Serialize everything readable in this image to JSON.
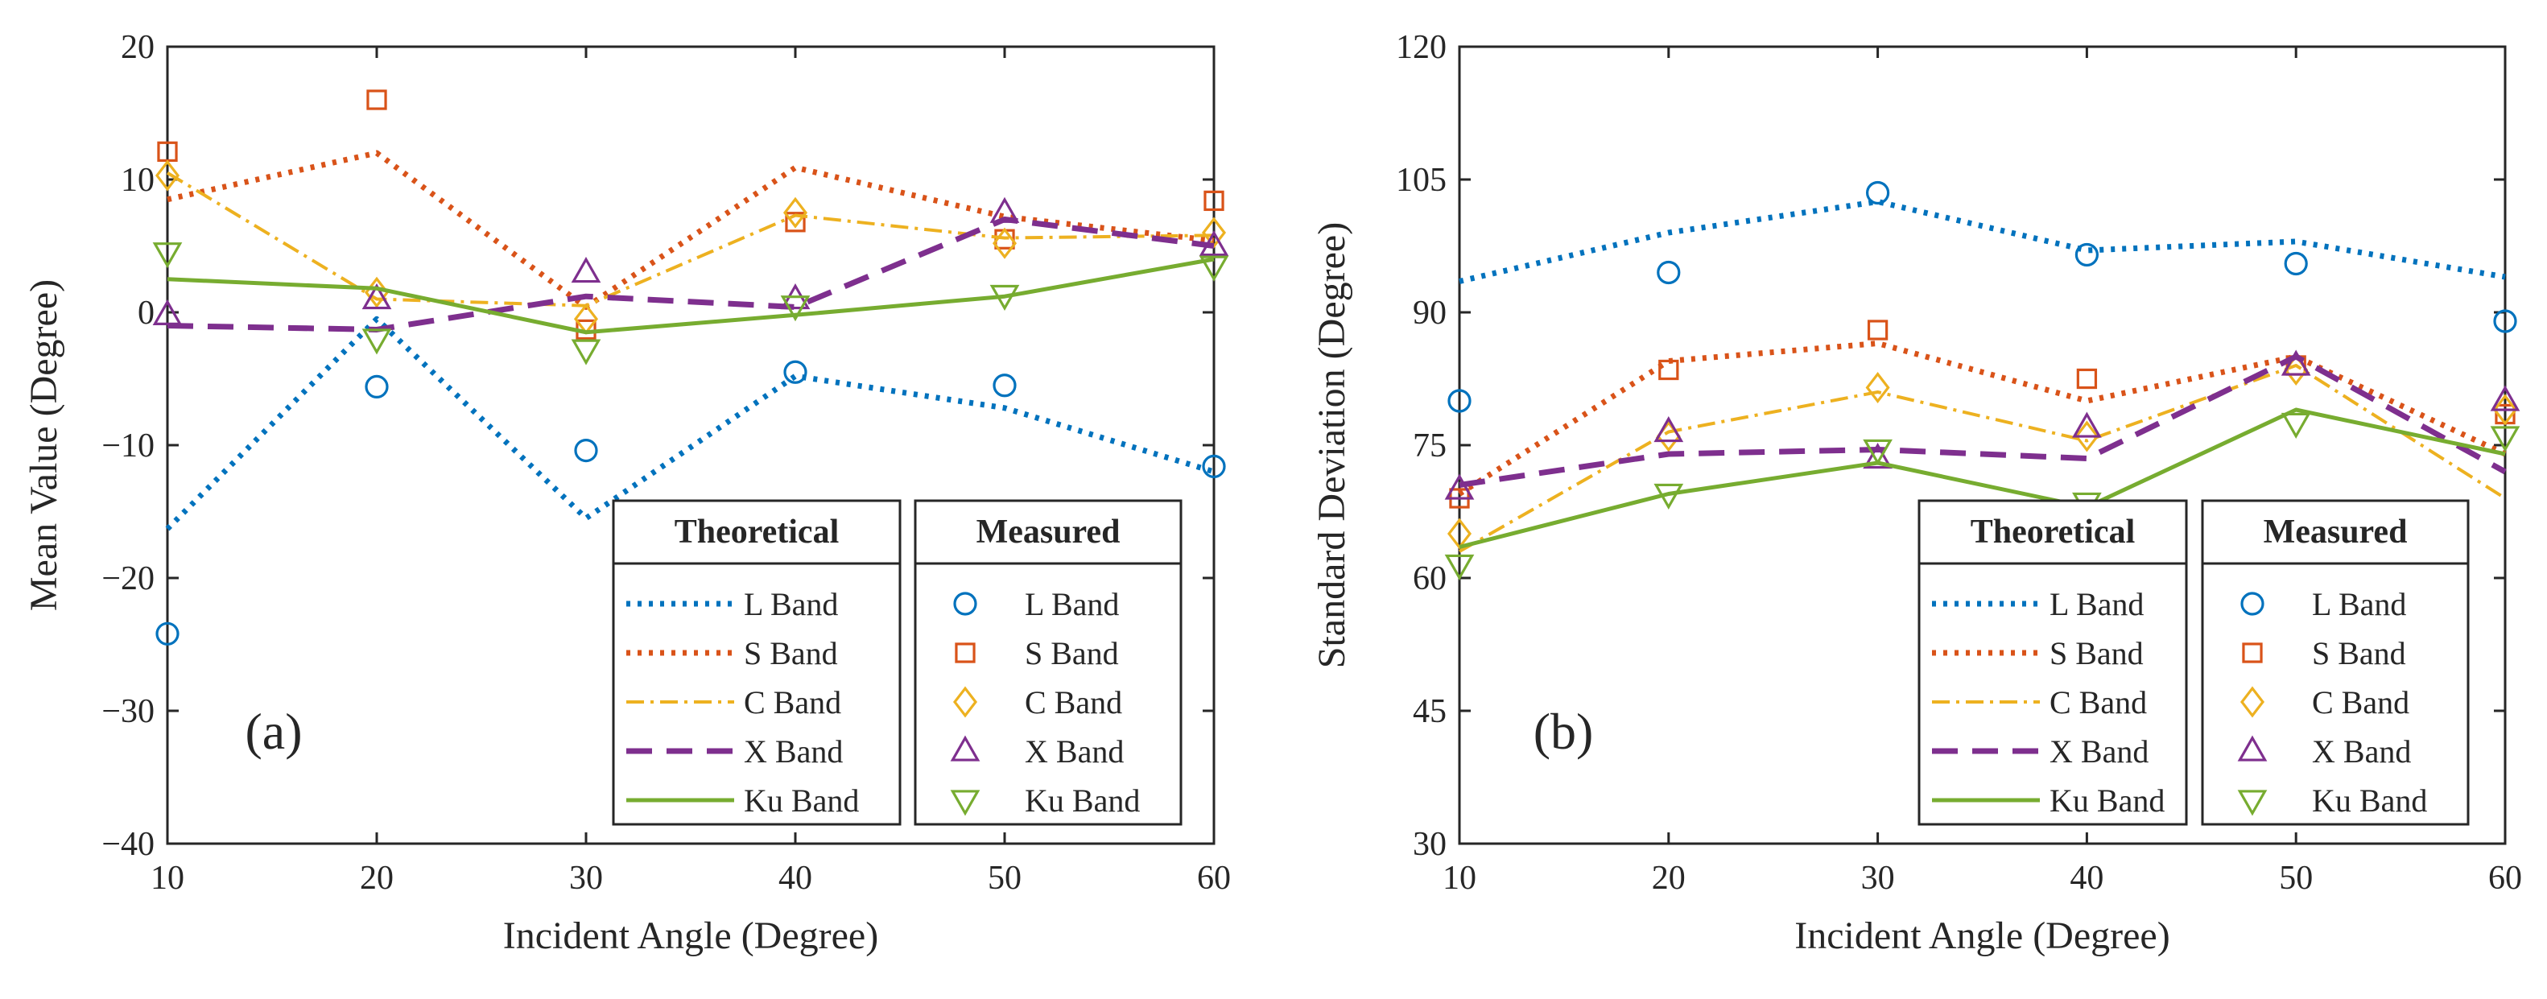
{
  "figure": {
    "panels": [
      "(a)",
      "(b)"
    ],
    "legend": {
      "theoretical_title": "Theoretical",
      "measured_title": "Measured"
    }
  },
  "chart_data": [
    {
      "type": "line",
      "panel_label": "(a)",
      "title": "",
      "xlabel": "Incident Angle (Degree)",
      "ylabel": "Mean Value (Degree)",
      "xlim": [
        10,
        60
      ],
      "ylim": [
        -40,
        20
      ],
      "xticks": [
        10,
        20,
        30,
        40,
        50,
        60
      ],
      "yticks": [
        -40,
        -30,
        -20,
        -10,
        0,
        10,
        20
      ],
      "x": [
        10,
        20,
        30,
        40,
        50,
        60
      ],
      "legend_position": "bottom-right",
      "series": [
        {
          "name": "L Band",
          "color": "#0072BD",
          "marker": "circle",
          "dash": "dotted",
          "theoretical": [
            -16.3,
            -0.5,
            -15.5,
            -4.8,
            -7.2,
            -12.0
          ],
          "measured": [
            -24.2,
            -5.6,
            -10.4,
            -4.5,
            -5.5,
            -11.6
          ]
        },
        {
          "name": "S Band",
          "color": "#D95319",
          "marker": "square",
          "dash": "dotted",
          "theoretical": [
            8.5,
            12.0,
            0.4,
            10.9,
            7.2,
            5.4
          ],
          "measured": [
            12.1,
            16.0,
            -1.3,
            6.8,
            5.5,
            8.4
          ]
        },
        {
          "name": "C Band",
          "color": "#EDB120",
          "marker": "diamond",
          "dash": "dashdot",
          "theoretical": [
            10.5,
            1.0,
            0.5,
            7.3,
            5.6,
            5.8
          ],
          "measured": [
            10.3,
            1.5,
            -0.5,
            7.5,
            5.2,
            6.0
          ]
        },
        {
          "name": "X Band",
          "color": "#7E2F8E",
          "marker": "triangle-up",
          "dash": "dashed",
          "theoretical": [
            -1.0,
            -1.3,
            1.2,
            0.4,
            7.0,
            5.0
          ],
          "measured": [
            -0.2,
            1.0,
            3.0,
            1.0,
            7.5,
            5.0
          ]
        },
        {
          "name": "Ku Band",
          "color": "#77AC30",
          "marker": "triangle-down",
          "dash": "solid",
          "theoretical": [
            2.5,
            1.8,
            -1.5,
            -0.2,
            1.2,
            4.0
          ],
          "measured": [
            4.5,
            -2.0,
            -2.8,
            0.5,
            1.3,
            3.5
          ]
        }
      ]
    },
    {
      "type": "line",
      "panel_label": "(b)",
      "title": "",
      "xlabel": "Incident Angle (Degree)",
      "ylabel": "Standard Deviation (Degree)",
      "xlim": [
        10,
        60
      ],
      "ylim": [
        30,
        120
      ],
      "xticks": [
        10,
        20,
        30,
        40,
        50,
        60
      ],
      "yticks": [
        30,
        45,
        60,
        75,
        90,
        105,
        120
      ],
      "x": [
        10,
        20,
        30,
        40,
        50,
        60
      ],
      "legend_position": "bottom-right",
      "series": [
        {
          "name": "L Band",
          "color": "#0072BD",
          "marker": "circle",
          "dash": "dotted",
          "theoretical": [
            93.5,
            99.0,
            102.5,
            97.0,
            98.0,
            94.0
          ],
          "measured": [
            80.0,
            94.5,
            103.5,
            96.5,
            95.5,
            89.0
          ]
        },
        {
          "name": "S Band",
          "color": "#D95319",
          "marker": "square",
          "dash": "dotted",
          "theoretical": [
            69.5,
            84.5,
            86.5,
            80.0,
            85.0,
            74.0
          ],
          "measured": [
            69.0,
            83.5,
            88.0,
            82.5,
            84.0,
            78.5
          ]
        },
        {
          "name": "C Band",
          "color": "#EDB120",
          "marker": "diamond",
          "dash": "dashdot",
          "theoretical": [
            63.0,
            76.5,
            81.0,
            75.5,
            84.0,
            69.0
          ],
          "measured": [
            65.0,
            76.0,
            81.5,
            76.0,
            83.5,
            79.0
          ]
        },
        {
          "name": "X Band",
          "color": "#7E2F8E",
          "marker": "triangle-up",
          "dash": "dashed",
          "theoretical": [
            70.5,
            74.0,
            74.5,
            73.5,
            85.0,
            72.0
          ],
          "measured": [
            70.0,
            76.5,
            73.5,
            77.0,
            84.0,
            80.0
          ]
        },
        {
          "name": "Ku Band",
          "color": "#77AC30",
          "marker": "triangle-down",
          "dash": "solid",
          "theoretical": [
            63.5,
            69.5,
            73.0,
            68.0,
            79.0,
            74.0
          ],
          "measured": [
            61.5,
            69.5,
            74.5,
            68.5,
            77.5,
            76.0
          ]
        }
      ]
    }
  ]
}
